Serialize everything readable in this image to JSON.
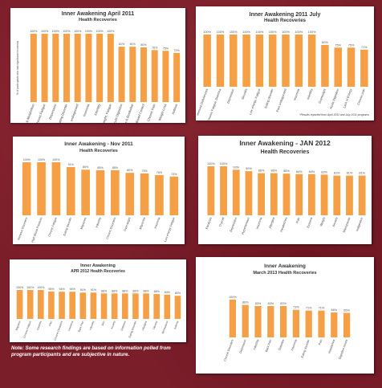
{
  "chart_data": [
    {
      "type": "bar",
      "title": "Inner Awakening April 2011",
      "subtitle": "Health Recoveries",
      "ylabel": "% of participants who had significant recoveries",
      "categories": [
        "Weight & Metabolism",
        "Chronic Fatigue",
        "Depression",
        "Eating Disorder",
        "Pain, undiagnosed",
        "Insomnia",
        "Infertility",
        "Overweight, Fatigue",
        "Acute Digestion",
        "Diabetes & Borderline",
        "Lack of Bowel Control",
        "Chronic Pain",
        "Weight Loss",
        "Asthma"
      ],
      "values": [
        100,
        100,
        100,
        100,
        100,
        100,
        100,
        100,
        81,
        81,
        80,
        76,
        75,
        72
      ],
      "value_labels": [
        "100%",
        "100%",
        "100%",
        "100%",
        "100%",
        "100%",
        "100%",
        "100%",
        "81%",
        "81%",
        "80%",
        "76%",
        "75%",
        "72%"
      ],
      "ylim": [
        0,
        100
      ]
    },
    {
      "type": "bar",
      "title": "Inner Awakening 2011 July",
      "subtitle": "Health Recoveries",
      "categories": [
        "Immune Deficiencies",
        "Chronic Fatigue, Diarrhea",
        "Depression",
        "Sinusitis",
        "Low energy, Fatigue",
        "Eating disorder",
        "Pain undiagnosed",
        "Insomnia",
        "Infertility",
        "Overweight",
        "Acute Digestion",
        "Lack of Energy",
        "Chronic pain"
      ],
      "values": [
        100,
        100,
        100,
        100,
        100,
        100,
        100,
        100,
        100,
        80,
        75,
        75,
        71
      ],
      "value_labels": [
        "100%",
        "100%",
        "100%",
        "100%",
        "100%",
        "100%",
        "100%",
        "100%",
        "100%",
        "80%",
        "75%",
        "75%",
        "71%"
      ],
      "footnote": "*Results reported from April 2011 and July 2011 programs",
      "ylim": [
        0,
        100
      ]
    },
    {
      "type": "bar",
      "title": "Inner Awakening - Nov 2011",
      "subtitle": "Health Recoveries",
      "categories": [
        "Nervous Disorders",
        "High Blood Pressure",
        "Chronic Fatigue",
        "Eating disorder",
        "Migraines",
        "Infertility",
        "Chronic Disorders",
        "Overweight",
        "Migraines",
        "Insomnia",
        "Low energy, Fatigue"
      ],
      "values": [
        100,
        100,
        100,
        91,
        86,
        85,
        85,
        80,
        79,
        76,
        73
      ],
      "value_labels": [
        "100%",
        "100%",
        "100%",
        "91%",
        "86%",
        "85%",
        "85%",
        "80%",
        "79%",
        "76%",
        "73%"
      ],
      "ylim": [
        0,
        100
      ]
    },
    {
      "type": "bar",
      "title": "Inner Awakening - JAN 2012",
      "subtitle": "Health Recoveries",
      "categories": [
        "Paralysis",
        "Thyroid",
        "Depression",
        "Hypertension",
        "Insomnia",
        "Allergies",
        "Headaches",
        "Pain",
        "Eczema",
        "Weight",
        "Anxiety",
        "Menopause",
        "Indigestion"
      ],
      "values": [
        100,
        100,
        93,
        90,
        86,
        86,
        85,
        84,
        84,
        83,
        81,
        81,
        81
      ],
      "value_labels": [
        "100%",
        "100%",
        "93%",
        "90%",
        "86%",
        "86%",
        "85%",
        "84%",
        "84%",
        "83%",
        "81%",
        "81%",
        "81%"
      ],
      "ylim": [
        0,
        100
      ]
    },
    {
      "type": "bar",
      "title": "Inner Awakening",
      "subtitle": "APR 2012 Health Recoveries",
      "categories": [
        "Migraine",
        "Chronic Fatigue",
        "Gastritis",
        "Pain",
        "Chronic Disorders",
        "Insomnia",
        "Back Pain",
        "Infertility",
        "Skin",
        "Anxiety",
        "Diabetes",
        "Eating Disorder",
        "Allergies",
        "Obesity",
        "Menopause",
        "Asthma"
      ],
      "values": [
        100,
        100,
        100,
        95,
        94,
        94,
        91,
        91,
        88,
        88,
        88,
        88,
        88,
        86,
        84,
        80
      ],
      "value_labels": [
        "100%",
        "100%",
        "100%",
        "95%",
        "94%",
        "94%",
        "91%",
        "91%",
        "88%",
        "88%",
        "88%",
        "88%",
        "88%",
        "86%",
        "84%",
        "80%"
      ],
      "ylim": [
        0,
        100
      ]
    },
    {
      "type": "bar",
      "title": "Inner Awakening",
      "subtitle": "March 2013 Health Recoveries",
      "categories": [
        "Chronic Disorders",
        "Depression",
        "Infertility",
        "Back Pain",
        "Diabetes",
        "Insomnia",
        "Eating disorder",
        "Pain",
        "Headaches",
        "Digestive issues"
      ],
      "values": [
        100,
        86,
        83,
        83,
        83,
        73,
        71,
        71,
        66,
        65
      ],
      "value_labels": [
        "100%",
        "86%",
        "83%",
        "83%",
        "83%",
        "73%",
        "71%",
        "71%",
        "66%",
        "65%"
      ],
      "ylim": [
        0,
        100
      ]
    }
  ],
  "note": "Note: Some research findings are based on information polled from program participants and are subjective in nature.",
  "colors": {
    "bar": "#f5a046",
    "background": "#7a1e2a"
  }
}
